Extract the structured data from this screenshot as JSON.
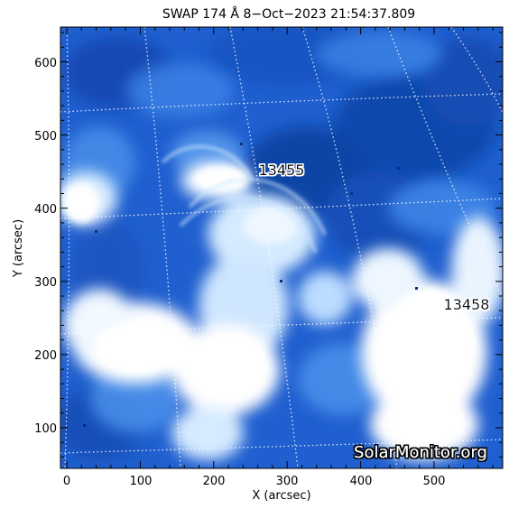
{
  "title": "SWAP 174 Å  8−Oct−2023 21:54:37.809",
  "x_axis": {
    "label": "X (arcsec)",
    "ticks": [
      "0",
      "100",
      "200",
      "300",
      "400",
      "500"
    ]
  },
  "y_axis": {
    "label": "Y (arcsec)",
    "ticks": [
      "100",
      "200",
      "300",
      "400",
      "500",
      "600"
    ]
  },
  "regions": [
    {
      "name": "13455"
    },
    {
      "name": "13458"
    }
  ],
  "watermark": "SolarMonitor.org",
  "colors": {
    "dark_blue": "#0a3d9a",
    "mid_blue": "#2f7ae0",
    "light_blue": "#8ec0f5",
    "white": "#ffffff",
    "grid": "#ffffff"
  }
}
